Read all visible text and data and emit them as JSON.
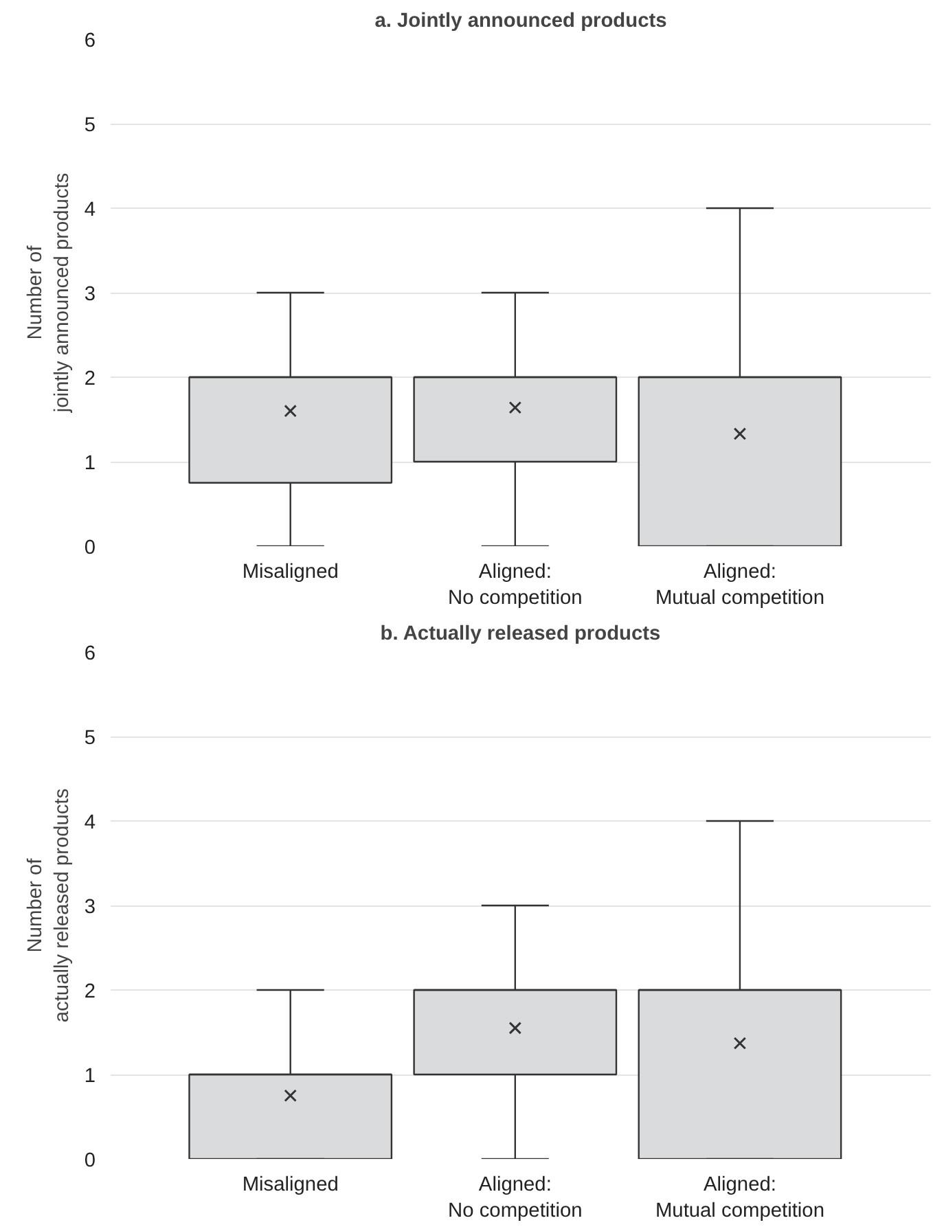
{
  "chart_data": [
    {
      "type": "box",
      "title": "a. Jointly announced products",
      "ylabel": "Number of\njointly announced products",
      "categories": [
        "Misaligned",
        "Aligned:\nNo competition",
        "Aligned:\nMutual competition"
      ],
      "ylim": [
        0,
        6
      ],
      "yticks": [
        0,
        1,
        2,
        3,
        4,
        5,
        6
      ],
      "grid": "y",
      "color": "#dadbdd",
      "marker": "cross",
      "boxes": [
        {
          "low": 0,
          "q1": 0.75,
          "median": 2,
          "q3": 2,
          "high": 3,
          "mean": 1.6
        },
        {
          "low": 0,
          "q1": 1,
          "median": 2,
          "q3": 2,
          "high": 3,
          "mean": 1.64
        },
        {
          "low": 0,
          "q1": 0,
          "median": 2,
          "q3": 2,
          "high": 4,
          "mean": 1.33
        }
      ]
    },
    {
      "type": "box",
      "title": "b. Actually released products",
      "ylabel": "Number of\nactually released products",
      "categories": [
        "Misaligned",
        "Aligned:\nNo competition",
        "Aligned:\nMutual competition"
      ],
      "ylim": [
        0,
        6
      ],
      "yticks": [
        0,
        1,
        2,
        3,
        4,
        5,
        6
      ],
      "grid": "y",
      "color": "#dadbdd",
      "marker": "cross",
      "boxes": [
        {
          "low": 0,
          "q1": 0,
          "median": 1,
          "q3": 1,
          "high": 2,
          "mean": 0.75
        },
        {
          "low": 0,
          "q1": 1,
          "median": 2,
          "q3": 2,
          "high": 3,
          "mean": 1.55
        },
        {
          "low": 0,
          "q1": 0,
          "median": 2,
          "q3": 2,
          "high": 4,
          "mean": 1.37
        }
      ]
    }
  ]
}
